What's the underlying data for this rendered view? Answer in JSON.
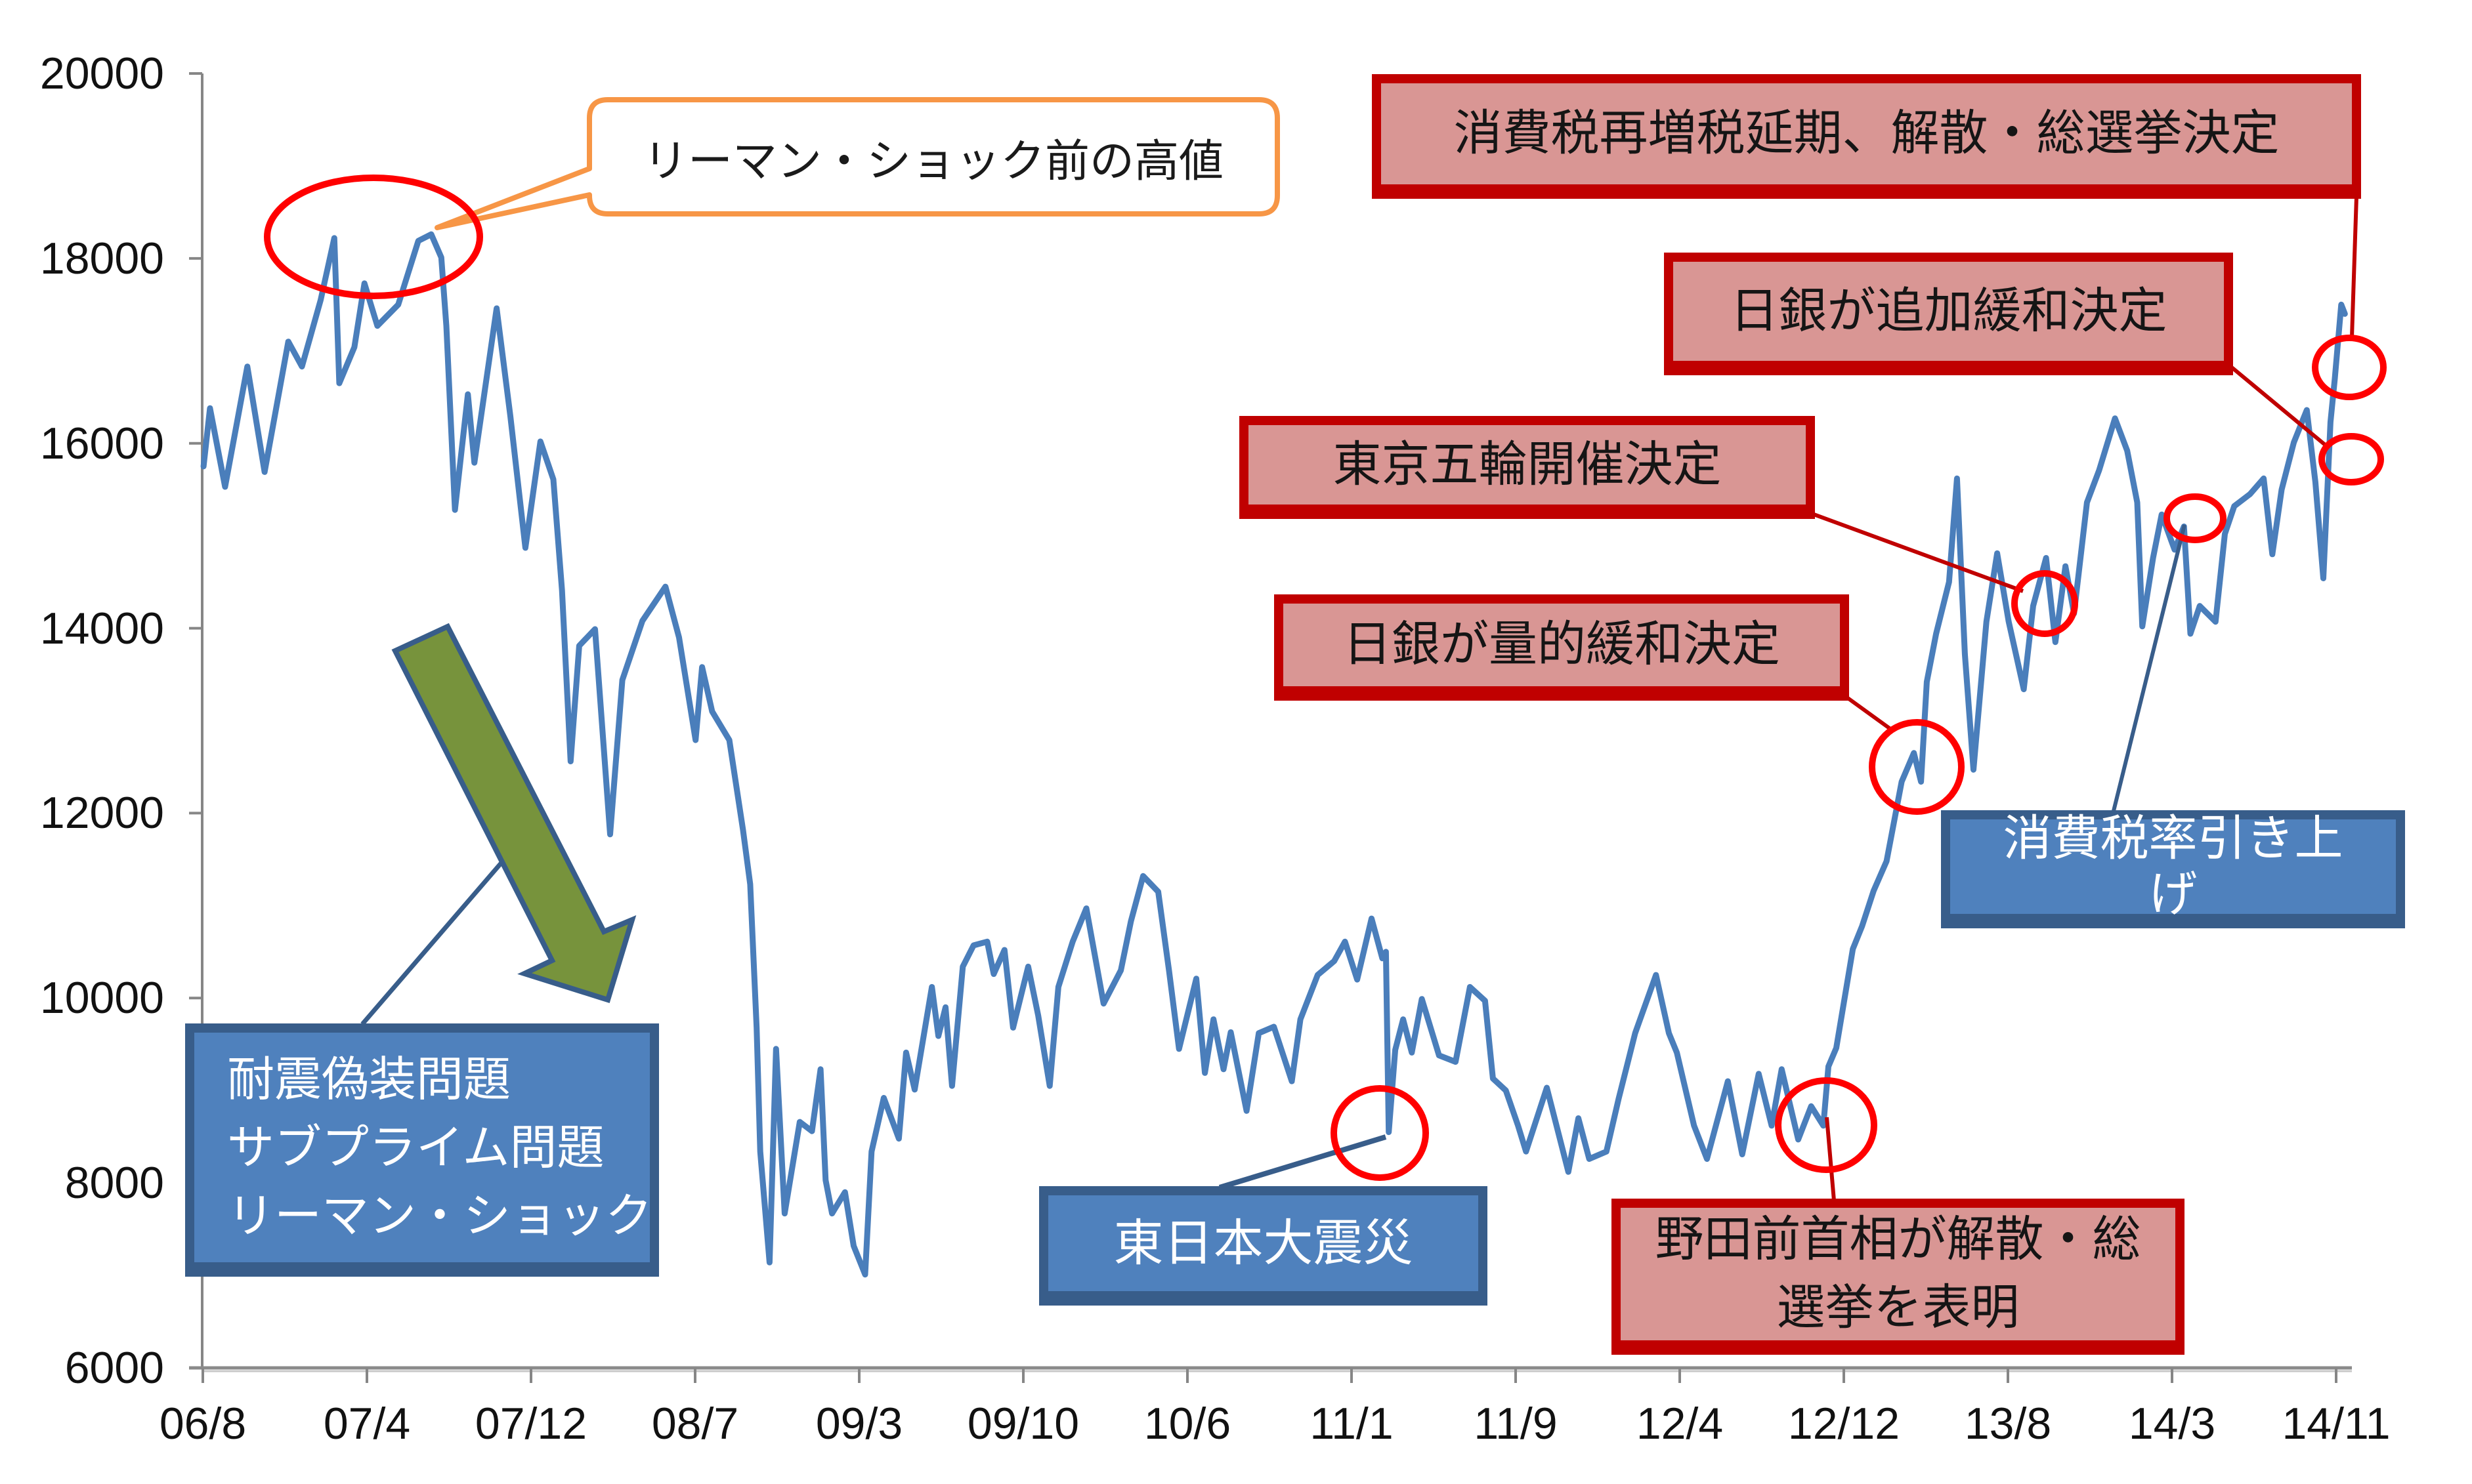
{
  "chart_data": {
    "type": "line",
    "title": "",
    "xlabel": "",
    "ylabel": "",
    "ylim": [
      6000,
      20000
    ],
    "yticks": [
      "20000",
      "18000",
      "16000",
      "14000",
      "12000",
      "10000",
      "8000",
      "6000"
    ],
    "xticks": [
      "06/8",
      "07/4",
      "07/12",
      "08/7",
      "09/3",
      "09/10",
      "10/6",
      "11/1",
      "11/9",
      "12/4",
      "12/12",
      "13/8",
      "14/3",
      "14/11"
    ],
    "grid": false,
    "legend": null,
    "x": [
      "2006/08/02",
      "2006/08/11",
      "2006/09/02",
      "2006/10/03",
      "2006/10/27",
      "2006/11/30",
      "2006/12/19",
      "2007/01/15",
      "2007/02/04",
      "2007/02/11",
      "2007/03/02",
      "2007/03/16",
      "2007/04/04",
      "2007/05/03",
      "2007/05/31",
      "2007/06/19",
      "2007/07/03",
      "2007/07/10",
      "2007/07/22",
      "2007/08/10",
      "2007/08/19",
      "2007/09/20",
      "2007/10/09",
      "2007/10/30",
      "2007/11/21",
      "2007/12/09",
      "2007/12/21",
      "2008/01/03",
      "2008/01/15",
      "2008/02/07",
      "2008/02/28",
      "2008/03/15",
      "2008/04/13",
      "2008/05/15",
      "2008/06/04",
      "2008/06/27",
      "2008/07/06",
      "2008/07/20",
      "2008/08/14",
      "2008/09/03",
      "2008/09/13",
      "2008/09/22",
      "2008/09/27",
      "2008/10/10",
      "2008/10/19",
      "2008/10/31",
      "2008/11/22",
      "2008/12/09",
      "2008/12/21",
      "2008/12/28",
      "2009/01/07",
      "2009/01/25",
      "2009/02/07",
      "2009/02/23",
      "2009/03/02",
      "2009/03/19",
      "2009/04/10",
      "2009/04/20",
      "2009/05/02",
      "2009/05/26",
      "2009/06/05",
      "2009/06/15",
      "2009/06/24",
      "2009/07/09",
      "2009/07/24",
      "2009/08/13",
      "2009/08/22",
      "2009/09/07",
      "2009/09/19",
      "2009/10/10",
      "2009/10/24",
      "2009/11/10",
      "2009/11/22",
      "2009/12/12",
      "2010/01/01",
      "2010/01/25",
      "2010/02/19",
      "2010/03/03",
      "2010/03/20",
      "2010/04/11",
      "2010/04/26",
      "2010/05/10",
      "2010/06/04",
      "2010/06/16",
      "2010/06/28",
      "2010/07/12",
      "2010/07/22",
      "2010/08/14",
      "2010/09/01",
      "2010/09/22",
      "2010/10/17",
      "2010/10/29",
      "2010/11/23",
      "2010/12/16",
      "2011/01/01",
      "2011/01/18",
      "2011/02/08",
      "2011/02/23",
      "2011/02/28",
      "2011/03/02",
      "2011/03/11",
      "2011/03/22",
      "2011/04/04",
      "2011/04/18",
      "2011/05/12",
      "2011/06/05",
      "2011/06/25",
      "2011/07/16",
      "2011/07/27",
      "2011/08/15",
      "2011/09/02",
      "2011/09/13",
      "2011/10/12",
      "2011/11/12",
      "2011/11/26",
      "2011/12/11",
      "2012/01/05",
      "2012/01/22",
      "2012/02/15",
      "2012/03/14",
      "2012/04/02",
      "2012/04/13",
      "2012/05/07",
      "2012/05/25",
      "2012/06/24",
      "2012/07/14",
      "2012/08/07",
      "2012/08/25",
      "2012/09/09",
      "2012/10/02",
      "2012/10/20",
      "2012/11/07",
      "2012/11/14",
      "2012/11/25",
      "2012/12/18",
      "2013/01/01",
      "2013/01/17",
      "2013/02/05",
      "2013/02/26",
      "2013/03/13",
      "2013/03/23",
      "2013/04/01",
      "2013/04/14",
      "2013/05/02",
      "2013/05/13",
      "2013/05/24",
      "2013/06/06",
      "2013/06/24",
      "2013/07/09",
      "2013/07/25",
      "2013/08/16",
      "2013/08/29",
      "2013/09/17",
      "2013/09/30",
      "2013/10/14",
      "2013/10/26",
      "2013/11/14",
      "2013/12/01",
      "2013/12/23",
      "2014/01/10",
      "2014/01/24",
      "2014/02/01",
      "2014/02/16",
      "2014/02/28",
      "2014/03/16",
      "2014/03/29",
      "2014/04/08",
      "2014/04/21",
      "2014/05/13",
      "2014/05/26",
      "2014/06/09",
      "2014/07/01",
      "2014/07/20",
      "2014/08/02",
      "2014/08/15",
      "2014/09/02",
      "2014/09/20",
      "2014/10/02",
      "2014/10/13",
      "2014/10/23",
      "2014/10/29",
      "2014/11/08",
      "2014/11/13"
    ],
    "values": [
      15750,
      16380,
      15530,
      16830,
      15690,
      17100,
      16830,
      17550,
      18220,
      16650,
      17040,
      17730,
      17270,
      17500,
      18190,
      18260,
      18010,
      17270,
      15280,
      16530,
      15790,
      17460,
      16300,
      14870,
      16020,
      15610,
      14410,
      12560,
      13810,
      13990,
      11770,
      13440,
      14080,
      14450,
      13900,
      12790,
      13580,
      13100,
      12790,
      11820,
      11230,
      9680,
      8340,
      7140,
      9450,
      7670,
      8660,
      8560,
      9230,
      8030,
      7670,
      7900,
      7320,
      7010,
      8340,
      8920,
      8480,
      9410,
      9010,
      10120,
      9590,
      9900,
      9050,
      10340,
      10570,
      10610,
      10260,
      10520,
      9680,
      10340,
      9810,
      9050,
      10120,
      10610,
      10970,
      9940,
      10300,
      10830,
      11320,
      11150,
      10300,
      9450,
      10210,
      9190,
      9770,
      9230,
      9630,
      8780,
      9620,
      9690,
      9100,
      9770,
      10250,
      10400,
      10610,
      10200,
      10860,
      10430,
      10500,
      8550,
      9440,
      9770,
      9410,
      9990,
      9380,
      9310,
      10120,
      9970,
      9130,
      9000,
      8620,
      8340,
      9030,
      8120,
      8700,
      8260,
      8340,
      8910,
      9620,
      10250,
      9620,
      9410,
      8620,
      8260,
      9100,
      8310,
      9180,
      8620,
      9230,
      8470,
      8830,
      8620,
      9260,
      9460,
      10530,
      10780,
      11160,
      11480,
      12340,
      12650,
      12340,
      13420,
      13940,
      14500,
      15620,
      13720,
      12470,
      14070,
      14810,
      14070,
      13340,
      14240,
      14760,
      13850,
      14670,
      14160,
      15360,
      15710,
      16270,
      15920,
      15360,
      14020,
      14760,
      15230,
      14850,
      15100,
      13940,
      14240,
      14070,
      15020,
      15320,
      15450,
      15620,
      14800,
      15500,
      16010,
      16360,
      15580,
      14540,
      16230,
      16700,
      17500,
      17400
    ],
    "annotations": {
      "pre_lehman_high": "リーマン・ショック前の高値",
      "tax_hike_delay_election": "消費税再増税延期、解散・総選挙決定",
      "boj_additional_easing": "日銀が追加緩和決定",
      "tokyo_olympics": "東京五輪開催決定",
      "boj_qe": "日銀が量的緩和決定",
      "consumption_tax_hike": "消費税率引き上げ",
      "crisis_lines": [
        "耐震偽装問題",
        "サブプライム問題",
        "リーマン・ショック"
      ],
      "earthquake": "東日本大震災",
      "noda_dissolution": "野田前首相が解散・総選挙を表明"
    },
    "colors": {
      "line": "#4A7EBB",
      "highlight_circle": "#FF0000",
      "red_box_fill": "#D99694",
      "red_box_border": "#C00000",
      "blue_box_fill": "#4F81BD",
      "blue_box_border": "#385D8A",
      "arrow_fill": "#77933C",
      "callout_border": "#F79646",
      "axis": "#868686"
    }
  }
}
